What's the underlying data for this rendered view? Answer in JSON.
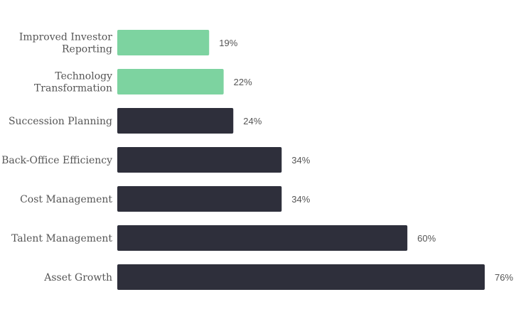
{
  "chart_data": {
    "type": "bar",
    "orientation": "horizontal",
    "categories": [
      "Improved Investor Reporting",
      "Technology Transformation",
      "Succession Planning",
      "Back-Office Efficiency",
      "Cost Management",
      "Talent Management",
      "Asset Growth"
    ],
    "category_lines": [
      [
        "Improved Investor",
        "Reporting"
      ],
      [
        "Technology",
        "Transformation"
      ],
      [
        "Succession Planning"
      ],
      [
        "Back-Office Efficiency"
      ],
      [
        "Cost Management"
      ],
      [
        "Talent Management"
      ],
      [
        "Asset Growth"
      ]
    ],
    "values": [
      19,
      22,
      24,
      34,
      34,
      60,
      76
    ],
    "value_labels": [
      "19%",
      "22%",
      "24%",
      "34%",
      "34%",
      "60%",
      "76%"
    ],
    "highlighted": [
      true,
      true,
      false,
      false,
      false,
      false,
      false
    ],
    "xlim": [
      0,
      76
    ],
    "title": "",
    "xlabel": "",
    "ylabel": "",
    "grid": false,
    "legend": "none",
    "colors": {
      "highlight": "#7dd3a0",
      "default": "#2e2f3b",
      "label_text": "#555555"
    }
  }
}
